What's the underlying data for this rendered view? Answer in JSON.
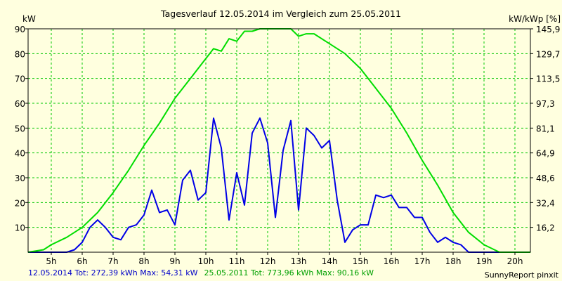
{
  "chart_data": {
    "type": "line",
    "title": "Tagesverlauf 12.05.2014 im Vergleich zum 25.05.2011",
    "ylabel_left": "kW",
    "ylabel_right": "kW/kWp [%]",
    "ylim": [
      0,
      90
    ],
    "y_ticks": [
      10,
      20,
      30,
      40,
      50,
      60,
      70,
      80,
      90
    ],
    "y_ticks_right": [
      "16,2",
      "32,4",
      "48,6",
      "64,9",
      "81,1",
      "97,3",
      "113,5",
      "129,7",
      "145,9"
    ],
    "x_range": [
      4.25,
      20.5
    ],
    "x_ticks": [
      {
        "h": 5,
        "label": "5h"
      },
      {
        "h": 6,
        "label": "6h"
      },
      {
        "h": 7,
        "label": "7h"
      },
      {
        "h": 8,
        "label": "8h"
      },
      {
        "h": 9,
        "label": "9h"
      },
      {
        "h": 10,
        "label": "10h"
      },
      {
        "h": 11,
        "label": "11h"
      },
      {
        "h": 12,
        "label": "12h"
      },
      {
        "h": 13,
        "label": "13h"
      },
      {
        "h": 14,
        "label": "14h"
      },
      {
        "h": 15,
        "label": "15h"
      },
      {
        "h": 16,
        "label": "16h"
      },
      {
        "h": 17,
        "label": "17h"
      },
      {
        "h": 18,
        "label": "18h"
      },
      {
        "h": 19,
        "label": "19h"
      },
      {
        "h": 20,
        "label": "20h"
      }
    ],
    "grid": true,
    "series": [
      {
        "name": "12.05.2014",
        "color": "#0000e6",
        "points": [
          [
            4.25,
            0
          ],
          [
            5.5,
            0
          ],
          [
            5.75,
            1
          ],
          [
            6,
            4
          ],
          [
            6.25,
            10
          ],
          [
            6.5,
            13
          ],
          [
            6.75,
            10
          ],
          [
            7,
            6
          ],
          [
            7.25,
            5
          ],
          [
            7.5,
            10
          ],
          [
            7.75,
            11
          ],
          [
            8,
            15
          ],
          [
            8.25,
            25
          ],
          [
            8.5,
            16
          ],
          [
            8.75,
            17
          ],
          [
            9,
            11
          ],
          [
            9.25,
            29
          ],
          [
            9.5,
            33
          ],
          [
            9.75,
            21
          ],
          [
            10,
            24
          ],
          [
            10.25,
            54
          ],
          [
            10.5,
            42
          ],
          [
            10.75,
            13
          ],
          [
            11,
            32
          ],
          [
            11.25,
            19
          ],
          [
            11.5,
            48
          ],
          [
            11.75,
            54
          ],
          [
            12,
            44
          ],
          [
            12.25,
            14
          ],
          [
            12.5,
            41
          ],
          [
            12.75,
            53
          ],
          [
            13,
            17
          ],
          [
            13.25,
            50
          ],
          [
            13.5,
            47
          ],
          [
            13.75,
            42
          ],
          [
            14,
            45
          ],
          [
            14.25,
            21
          ],
          [
            14.5,
            4
          ],
          [
            14.75,
            9
          ],
          [
            15,
            11
          ],
          [
            15.25,
            11
          ],
          [
            15.5,
            23
          ],
          [
            15.75,
            22
          ],
          [
            16,
            23
          ],
          [
            16.25,
            18
          ],
          [
            16.5,
            18
          ],
          [
            16.75,
            14
          ],
          [
            17,
            14
          ],
          [
            17.25,
            8
          ],
          [
            17.5,
            4
          ],
          [
            17.75,
            6
          ],
          [
            18,
            4
          ],
          [
            18.25,
            3
          ],
          [
            18.5,
            0
          ],
          [
            19.5,
            0
          ]
        ]
      },
      {
        "name": "25.05.2011",
        "color": "#00dd00",
        "points": [
          [
            4.25,
            0
          ],
          [
            4.75,
            1
          ],
          [
            5,
            3
          ],
          [
            5.5,
            6
          ],
          [
            6,
            10
          ],
          [
            6.5,
            16
          ],
          [
            7,
            24
          ],
          [
            7.5,
            33
          ],
          [
            8,
            43
          ],
          [
            8.5,
            52
          ],
          [
            9,
            62
          ],
          [
            9.5,
            70
          ],
          [
            10,
            78
          ],
          [
            10.25,
            82
          ],
          [
            10.5,
            81
          ],
          [
            10.75,
            86
          ],
          [
            11,
            85
          ],
          [
            11.25,
            89
          ],
          [
            11.5,
            89
          ],
          [
            11.75,
            90
          ],
          [
            12,
            90
          ],
          [
            12.5,
            90
          ],
          [
            12.75,
            90
          ],
          [
            13,
            87
          ],
          [
            13.25,
            88
          ],
          [
            13.5,
            88
          ],
          [
            14,
            84
          ],
          [
            14.5,
            80
          ],
          [
            15,
            74
          ],
          [
            15.5,
            66
          ],
          [
            16,
            58
          ],
          [
            16.5,
            48
          ],
          [
            17,
            37
          ],
          [
            17.5,
            27
          ],
          [
            18,
            16
          ],
          [
            18.5,
            8
          ],
          [
            19,
            3
          ],
          [
            19.5,
            0
          ],
          [
            20.5,
            0
          ]
        ]
      }
    ]
  },
  "footer": {
    "blue_text": "12.05.2014 Tot: 272,39 kWh Max: 54,31 kW",
    "green_text": "25.05.2011 Tot: 773,96 kWh Max: 90,16 kW",
    "brand": "SunnyReport pinxit"
  }
}
